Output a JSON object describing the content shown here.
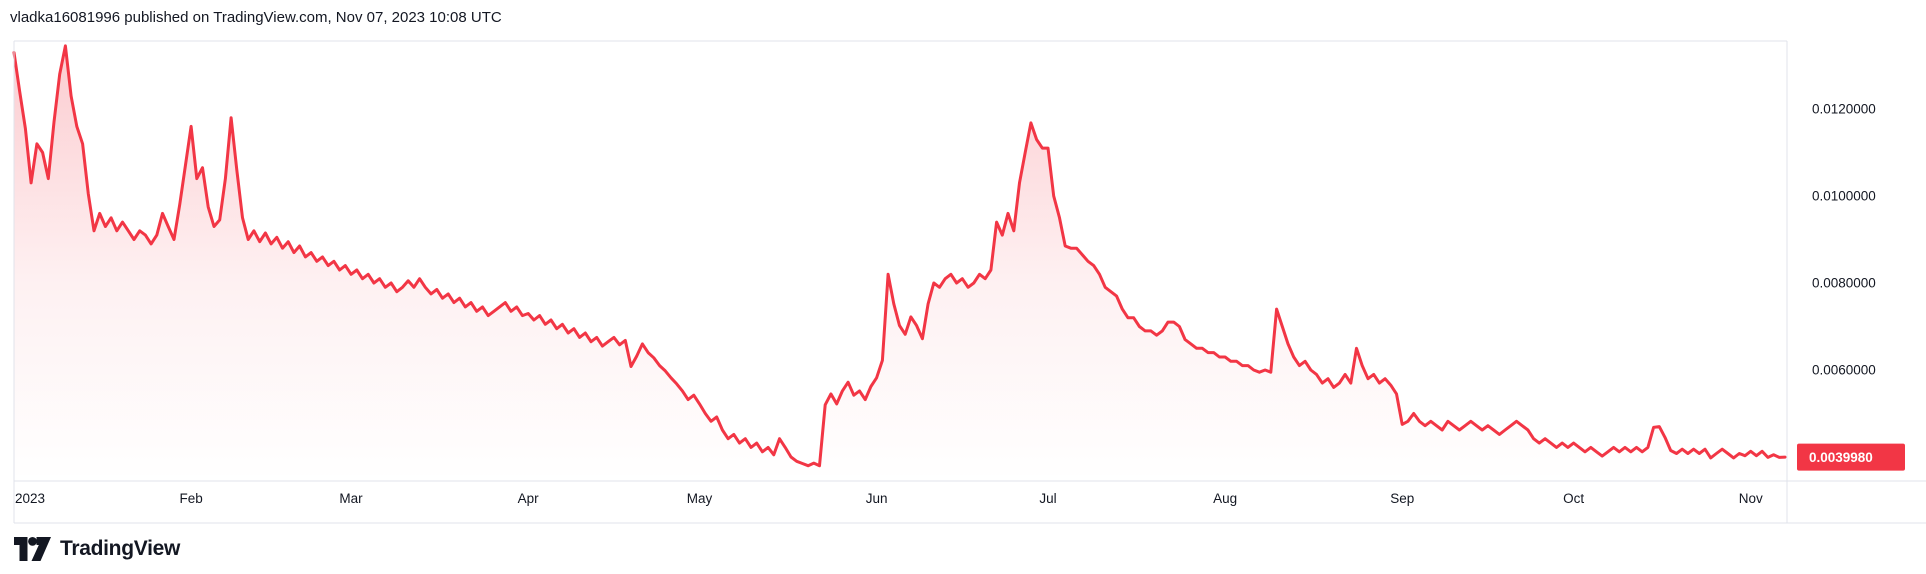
{
  "header": {
    "text": "vladka16081996 published on TradingView.com, Nov 07, 2023 10:08 UTC"
  },
  "logo": {
    "text": "TradingView"
  },
  "price_scale": {
    "ticks": [
      {
        "label": "0.0120000",
        "value": 0.012
      },
      {
        "label": "0.0100000",
        "value": 0.01
      },
      {
        "label": "0.0080000",
        "value": 0.008
      },
      {
        "label": "0.0060000",
        "value": 0.006
      }
    ],
    "last_price_badge": {
      "label": "0.0039980",
      "value": 0.003998
    }
  },
  "time_scale": {
    "labels": [
      {
        "label": "2023",
        "day": 0
      },
      {
        "label": "Feb",
        "day": 31
      },
      {
        "label": "Mar",
        "day": 59
      },
      {
        "label": "Apr",
        "day": 90
      },
      {
        "label": "May",
        "day": 120
      },
      {
        "label": "Jun",
        "day": 151
      },
      {
        "label": "Jul",
        "day": 181
      },
      {
        "label": "Aug",
        "day": 212
      },
      {
        "label": "Sep",
        "day": 243
      },
      {
        "label": "Oct",
        "day": 273
      },
      {
        "label": "Nov",
        "day": 304
      }
    ]
  },
  "colors": {
    "line": "#F23645",
    "badge_bg": "#F23645",
    "badge_text": "#FFFFFF",
    "text": "#131722",
    "border": "#E0E3EB",
    "fill_top": "rgba(242,54,69,0.26)",
    "fill_mid": "rgba(242,54,69,0.07)",
    "fill_bottom": "rgba(242,54,69,0.0)"
  },
  "chart_data": {
    "type": "area",
    "title": "",
    "xlabel": "",
    "ylabel": "",
    "grid": "off",
    "legend": "none",
    "x_unit": "days since 2023-01-01",
    "x_axis_labels": [
      "2023",
      "Feb",
      "Mar",
      "Apr",
      "May",
      "Jun",
      "Jul",
      "Aug",
      "Sep",
      "Oct",
      "Nov"
    ],
    "y_axis_ticks": [
      0.012,
      0.01,
      0.008,
      0.006
    ],
    "ylim": [
      0.003,
      0.0138
    ],
    "last_value": 0.003998,
    "start_day": 0,
    "day_step": 1,
    "prices": [
      0.0133,
      0.0124,
      0.01155,
      0.0103,
      0.0112,
      0.011,
      0.0104,
      0.0117,
      0.0128,
      0.01345,
      0.0123,
      0.0116,
      0.0112,
      0.01005,
      0.0092,
      0.0096,
      0.0093,
      0.0095,
      0.0092,
      0.0094,
      0.0092,
      0.009,
      0.0092,
      0.0091,
      0.0089,
      0.0091,
      0.0096,
      0.0093,
      0.009,
      0.0098,
      0.0107,
      0.0116,
      0.0104,
      0.01065,
      0.00975,
      0.0093,
      0.00945,
      0.0104,
      0.0118,
      0.0106,
      0.0095,
      0.009,
      0.0092,
      0.00895,
      0.00915,
      0.0089,
      0.00905,
      0.0088,
      0.00895,
      0.0087,
      0.00885,
      0.0086,
      0.0087,
      0.0085,
      0.0086,
      0.0084,
      0.0085,
      0.0083,
      0.0084,
      0.0082,
      0.0083,
      0.0081,
      0.0082,
      0.008,
      0.0081,
      0.0079,
      0.008,
      0.0078,
      0.0079,
      0.00805,
      0.0079,
      0.0081,
      0.0079,
      0.00775,
      0.00785,
      0.00765,
      0.00775,
      0.00755,
      0.00765,
      0.00745,
      0.00755,
      0.00735,
      0.00745,
      0.00725,
      0.00735,
      0.00745,
      0.00755,
      0.00735,
      0.00745,
      0.00725,
      0.0073,
      0.00715,
      0.00725,
      0.00705,
      0.00715,
      0.00695,
      0.00705,
      0.00685,
      0.00695,
      0.00675,
      0.00685,
      0.00665,
      0.00675,
      0.00655,
      0.00665,
      0.00675,
      0.00658,
      0.00668,
      0.00608,
      0.00632,
      0.0066,
      0.0064,
      0.00628,
      0.0061,
      0.00598,
      0.00582,
      0.00568,
      0.00552,
      0.00532,
      0.00542,
      0.00522,
      0.005,
      0.00482,
      0.00492,
      0.00462,
      0.00442,
      0.00452,
      0.00432,
      0.00442,
      0.00422,
      0.00432,
      0.00412,
      0.00422,
      0.00405,
      0.00442,
      0.00422,
      0.004,
      0.0039,
      0.00385,
      0.0038,
      0.00386,
      0.0038,
      0.0052,
      0.00545,
      0.00522,
      0.00552,
      0.00572,
      0.00542,
      0.00552,
      0.00532,
      0.00562,
      0.00582,
      0.00622,
      0.0082,
      0.00752,
      0.00702,
      0.00682,
      0.00722,
      0.00702,
      0.00672,
      0.00752,
      0.008,
      0.0079,
      0.0081,
      0.0082,
      0.008,
      0.0081,
      0.0079,
      0.008,
      0.0082,
      0.0081,
      0.0083,
      0.0094,
      0.0091,
      0.0096,
      0.0092,
      0.0103,
      0.011,
      0.01168,
      0.0113,
      0.0111,
      0.0111,
      0.01,
      0.0095,
      0.00885,
      0.0088,
      0.0088,
      0.00865,
      0.0085,
      0.0084,
      0.0082,
      0.0079,
      0.0078,
      0.0077,
      0.0074,
      0.0072,
      0.0072,
      0.007,
      0.0069,
      0.0069,
      0.0068,
      0.0069,
      0.0071,
      0.0071,
      0.007,
      0.0067,
      0.0066,
      0.0065,
      0.0065,
      0.0064,
      0.0064,
      0.0063,
      0.0063,
      0.0062,
      0.0062,
      0.0061,
      0.0061,
      0.006,
      0.00595,
      0.006,
      0.00595,
      0.0074,
      0.007,
      0.0066,
      0.0063,
      0.0061,
      0.0062,
      0.006,
      0.0059,
      0.0057,
      0.0058,
      0.0056,
      0.0057,
      0.0059,
      0.0057,
      0.0065,
      0.0061,
      0.0058,
      0.0059,
      0.0057,
      0.0058,
      0.00565,
      0.00545,
      0.00475,
      0.00482,
      0.005,
      0.00482,
      0.00472,
      0.00482,
      0.00472,
      0.00462,
      0.00482,
      0.00472,
      0.00462,
      0.00472,
      0.00482,
      0.00472,
      0.00462,
      0.00472,
      0.00462,
      0.00452,
      0.00462,
      0.00472,
      0.00482,
      0.00472,
      0.00462,
      0.00442,
      0.00432,
      0.00442,
      0.00432,
      0.00422,
      0.00432,
      0.00422,
      0.00432,
      0.00422,
      0.00412,
      0.00422,
      0.00412,
      0.00402,
      0.00412,
      0.00422,
      0.00412,
      0.00422,
      0.00412,
      0.00422,
      0.00412,
      0.00422,
      0.00468,
      0.0047,
      0.00445,
      0.00415,
      0.00408,
      0.00418,
      0.00408,
      0.00418,
      0.00408,
      0.00418,
      0.00398,
      0.00408,
      0.00418,
      0.00408,
      0.00398,
      0.00408,
      0.00403,
      0.00413,
      0.00403,
      0.00413,
      0.00399,
      0.00405,
      0.00399,
      0.003998
    ]
  }
}
